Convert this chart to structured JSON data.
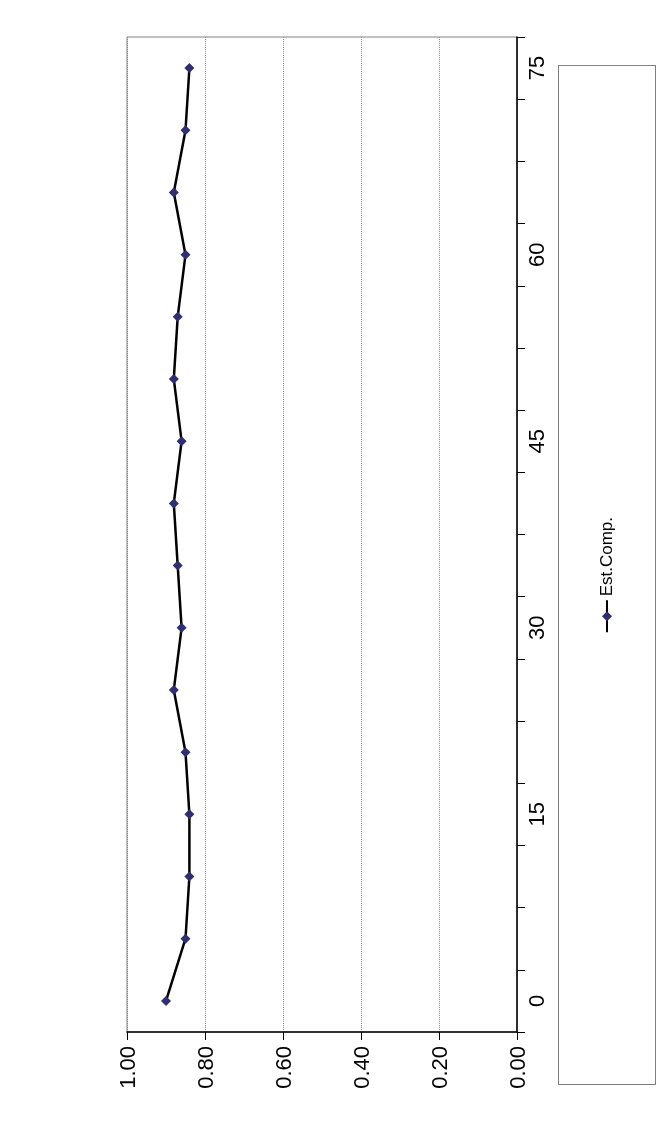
{
  "chart_data": {
    "type": "line",
    "orientation": "horizontal",
    "categories": [
      "75",
      null,
      null,
      "60",
      null,
      null,
      "45",
      null,
      null,
      "30",
      null,
      null,
      "15",
      null,
      null,
      "0"
    ],
    "series": [
      {
        "name": "Est.Comp.",
        "color": "#2e2e70",
        "values": [
          0.84,
          0.85,
          0.88,
          0.85,
          0.87,
          0.88,
          0.86,
          0.88,
          0.87,
          0.86,
          0.88,
          0.85,
          0.84,
          0.84,
          0.85,
          0.9
        ]
      }
    ],
    "xlim": [
      1,
      0
    ],
    "xticks": [
      {
        "value": 1,
        "label": "1.00"
      },
      {
        "value": 0.8,
        "label": "0.80"
      },
      {
        "value": 0.6,
        "label": "0.60"
      },
      {
        "value": 0.4,
        "label": "0.40"
      },
      {
        "value": 0.2,
        "label": "0.20"
      },
      {
        "value": 0,
        "label": "0.00"
      }
    ],
    "grid": "x",
    "legend": "right",
    "marker": "diamond",
    "line_style": "solid"
  }
}
